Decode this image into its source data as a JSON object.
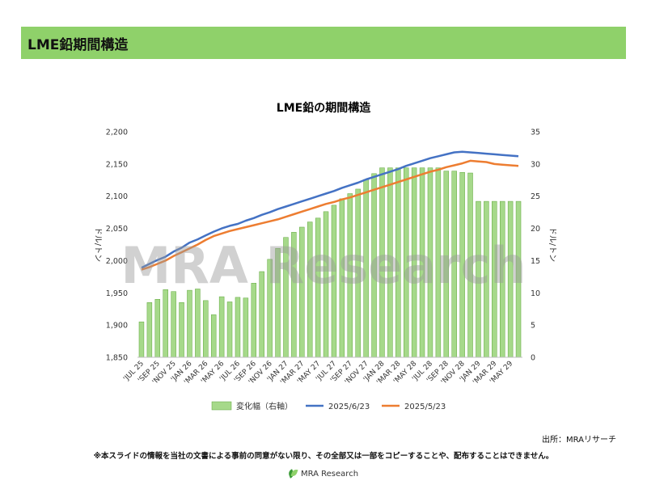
{
  "header": {
    "title": "LME鉛期間構造"
  },
  "source": "出所：MRAリサーチ",
  "disclaimer": "※本スライドの情報を当社の文書による事前の同意がない限り、その全部又は一部をコピーすることや、配布することはできません。",
  "footer": {
    "brand": "MRA Research"
  },
  "watermark": "MRA Research",
  "colors": {
    "bar": "#a6d98a",
    "bar_edge": "#5ea63a",
    "line1": "#4472c4",
    "line2": "#ed7d31",
    "header": "#8fd16a"
  },
  "chart_data": {
    "type": "bar+line",
    "title": "LME鉛の期間構造",
    "ylabel_left": "ドル/トン",
    "ylabel_right": "ドル/トン",
    "ylim_left": [
      1850,
      2200
    ],
    "yticks_left": [
      "1,850",
      "1,900",
      "1,950",
      "2,000",
      "2,050",
      "2,100",
      "2,150",
      "2,200"
    ],
    "ylim_right": [
      0,
      35
    ],
    "yticks_right": [
      "0",
      "5",
      "10",
      "15",
      "20",
      "25",
      "30",
      "35"
    ],
    "categories": [
      "Jul 25",
      "Aug 25",
      "Sep 25",
      "Oct 25",
      "Nov 25",
      "Dec 25",
      "Jan 26",
      "Feb 26",
      "Mar 26",
      "Apr 26",
      "May 26",
      "Jun 26",
      "Jul 26",
      "Aug 26",
      "Sep 26",
      "Oct 26",
      "Nov 26",
      "Dec 26",
      "Jan 27",
      "Feb 27",
      "Mar 27",
      "Apr 27",
      "May 27",
      "Jun 27",
      "Jul 27",
      "Aug 27",
      "Sep 27",
      "Oct 27",
      "Nov 27",
      "Dec 27",
      "Jan 28",
      "Feb 28",
      "Mar 28",
      "Apr 28",
      "May 28",
      "Jun 28",
      "Jul 28",
      "Aug 28",
      "Sep 28",
      "Oct 28",
      "Nov 28",
      "Dec 28",
      "Jan 29",
      "Feb 29",
      "Mar 29",
      "Apr 29",
      "May 29",
      "Jun 29"
    ],
    "tick_labels": [
      "'JUL 25",
      "'SEP 25",
      "'NOV 25",
      "'JAN 26",
      "'MAR 26",
      "'MAY 26",
      "'JUL 26",
      "'SEP 26",
      "'NOV 26",
      "'JAN 27",
      "'MAR 27",
      "'MAY 27",
      "'JUL 27",
      "'SEP 27",
      "'NOV 27",
      "'JAN 28",
      "'MAR 28",
      "'MAY 28",
      "'JUL 28",
      "'SEP 28",
      "'NOV 28",
      "'JAN 29",
      "'MAR 29",
      "'MAY 29"
    ],
    "series": [
      {
        "name": "変化幅（右軸）",
        "type": "bar",
        "axis": "right",
        "values": [
          5.5,
          8.5,
          9,
          10.5,
          10.2,
          8.5,
          10.4,
          10.6,
          8.8,
          6.6,
          9.4,
          8.6,
          9.3,
          9.2,
          11.5,
          13.3,
          15.2,
          16.9,
          18.6,
          19.4,
          20.2,
          21,
          21.6,
          22.6,
          23.6,
          24.6,
          25.4,
          26.1,
          27.6,
          28.5,
          29.4,
          29.4,
          29.4,
          29.4,
          29.4,
          29.4,
          29.4,
          29.4,
          28.9,
          28.9,
          28.7,
          28.6,
          24.2,
          24.2,
          24.2,
          24.2,
          24.2,
          24.2
        ]
      },
      {
        "name": "2025/6/23",
        "type": "line",
        "axis": "left",
        "values": [
          1989,
          1995,
          2001,
          2006,
          2014,
          2020,
          2028,
          2033,
          2039,
          2045,
          2050,
          2054,
          2057,
          2062,
          2066,
          2071,
          2075,
          2080,
          2084,
          2088,
          2092,
          2096,
          2100,
          2104,
          2108,
          2113,
          2117,
          2121,
          2126,
          2130,
          2134,
          2138,
          2142,
          2147,
          2151,
          2155,
          2159,
          2162,
          2165,
          2168,
          2169,
          2168,
          2167,
          2166,
          2165,
          2164,
          2163,
          2162
        ]
      },
      {
        "name": "2025/5/23",
        "type": "line",
        "axis": "left",
        "values": [
          1986,
          1990,
          1995,
          2000,
          2007,
          2013,
          2019,
          2025,
          2032,
          2038,
          2042,
          2046,
          2049,
          2052,
          2055,
          2058,
          2061,
          2064,
          2068,
          2072,
          2076,
          2080,
          2084,
          2088,
          2091,
          2095,
          2098,
          2102,
          2106,
          2110,
          2114,
          2118,
          2122,
          2126,
          2130,
          2134,
          2138,
          2141,
          2145,
          2148,
          2151,
          2155,
          2154,
          2153,
          2150,
          2149,
          2148,
          2147
        ]
      }
    ],
    "legend_position": "bottom",
    "grid": false
  }
}
